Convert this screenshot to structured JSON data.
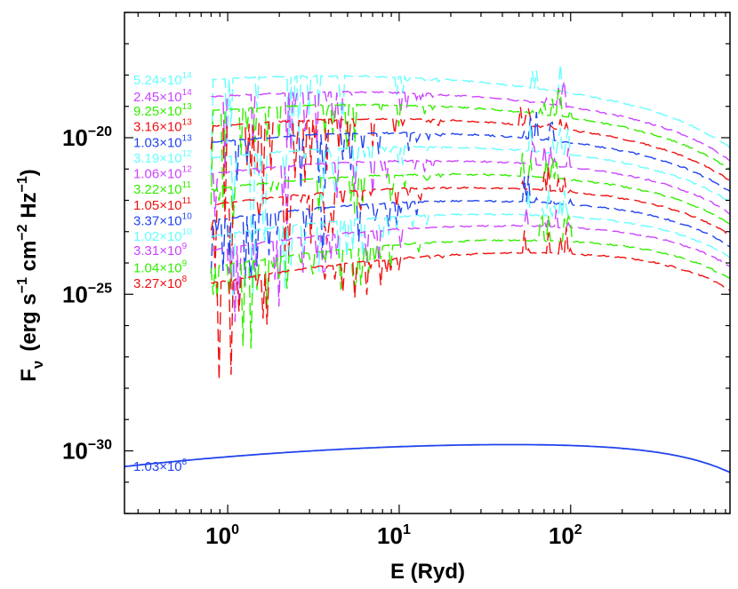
{
  "chart_data": {
    "type": "line",
    "title": "",
    "xlabel": "E (Ryd)",
    "ylabel": "F_ν (erg s^-1 cm^-2 Hz^-1)",
    "ylabel_parts": {
      "main": "F",
      "sub": "ν",
      "units_open": "(erg s",
      "s_exp": "−1",
      "cm": " cm",
      "cm_exp": "−2",
      "hz": " Hz",
      "hz_exp": "−1",
      "units_close": ")"
    },
    "xlabel_text": "E (Ryd)",
    "xscale": "log",
    "yscale": "log",
    "xlim": [
      0.25,
      850
    ],
    "ylim": [
      1e-32,
      1e-16
    ],
    "x_ticks": [
      {
        "value": 1,
        "base": "10",
        "exp": "0"
      },
      {
        "value": 10,
        "base": "10",
        "exp": "1"
      },
      {
        "value": 100,
        "base": "10",
        "exp": "2"
      }
    ],
    "y_ticks": [
      {
        "value": 1e-30,
        "base": "10",
        "exp": "−30"
      },
      {
        "value": 1e-25,
        "base": "10",
        "exp": "−25"
      },
      {
        "value": 1e-20,
        "base": "10",
        "exp": "−20"
      }
    ],
    "series": [
      {
        "name": "5.24×10^14",
        "mant": "5.24×10",
        "exp": "14",
        "color": "#66ffff",
        "style": "dashed",
        "start": 0.8,
        "log_flux_start": -18.15,
        "peak_log_e": 0.6,
        "curvature": -0.25,
        "cutoff_e": 600,
        "noise": 0.05
      },
      {
        "name": "2.45×10^14",
        "mant": "2.45×10",
        "exp": "14",
        "color": "#cc44ff",
        "style": "dashed",
        "start": 0.8,
        "log_flux_start": -18.7,
        "peak_log_e": 0.7,
        "curvature": -0.25,
        "cutoff_e": 600,
        "noise": 0.05
      },
      {
        "name": "9.25×10^13",
        "mant": "9.25×10",
        "exp": "13",
        "color": "#33ee00",
        "style": "dashed",
        "start": 0.8,
        "log_flux_start": -19.15,
        "peak_log_e": 0.8,
        "curvature": -0.25,
        "cutoff_e": 600,
        "noise": 0.05
      },
      {
        "name": "3.16×10^13",
        "mant": "3.16×10",
        "exp": "13",
        "color": "#ee1111",
        "style": "dashed",
        "start": 0.8,
        "log_flux_start": -19.65,
        "peak_log_e": 0.9,
        "curvature": -0.25,
        "cutoff_e": 600,
        "noise": 0.05
      },
      {
        "name": "1.03×10^13",
        "mant": "1.03×10",
        "exp": "13",
        "color": "#2244ee",
        "style": "dashed",
        "start": 0.8,
        "log_flux_start": -20.15,
        "peak_log_e": 1.0,
        "curvature": -0.25,
        "cutoff_e": 600,
        "noise": 0.05
      },
      {
        "name": "3.19×10^12",
        "mant": "3.19×10",
        "exp": "12",
        "color": "#66ffff",
        "style": "dashed",
        "start": 0.8,
        "log_flux_start": -20.65,
        "peak_log_e": 1.1,
        "curvature": -0.25,
        "cutoff_e": 600,
        "noise": 0.05
      },
      {
        "name": "1.06×10^12",
        "mant": "1.06×10",
        "exp": "12",
        "color": "#cc44ff",
        "style": "dashed",
        "start": 0.8,
        "log_flux_start": -21.15,
        "peak_log_e": 1.2,
        "curvature": -0.25,
        "cutoff_e": 600,
        "noise": 0.05
      },
      {
        "name": "3.22×10^11",
        "mant": "3.22×10",
        "exp": "11",
        "color": "#33ee00",
        "style": "dashed",
        "start": 0.8,
        "log_flux_start": -21.65,
        "peak_log_e": 1.3,
        "curvature": -0.25,
        "cutoff_e": 600,
        "noise": 0.05
      },
      {
        "name": "1.05×10^11",
        "mant": "1.05×10",
        "exp": "11",
        "color": "#ee1111",
        "style": "dashed",
        "start": 0.8,
        "log_flux_start": -22.15,
        "peak_log_e": 1.4,
        "curvature": -0.25,
        "cutoff_e": 600,
        "noise": 0.05
      },
      {
        "name": "3.37×10^10",
        "mant": "3.37×10",
        "exp": "10",
        "color": "#2244ee",
        "style": "dashed",
        "start": 0.8,
        "log_flux_start": -22.65,
        "peak_log_e": 1.5,
        "curvature": -0.25,
        "cutoff_e": 600,
        "noise": 0.05
      },
      {
        "name": "1.02×10^10",
        "mant": "1.02×10",
        "exp": "10",
        "color": "#66ffff",
        "style": "dashed",
        "start": 0.8,
        "log_flux_start": -23.15,
        "peak_log_e": 1.6,
        "curvature": -0.25,
        "cutoff_e": 600,
        "noise": 0.05
      },
      {
        "name": "3.31×10^9",
        "mant": "3.31×10",
        "exp": "9",
        "color": "#cc44ff",
        "style": "dashed",
        "start": 0.8,
        "log_flux_start": -23.6,
        "peak_log_e": 1.7,
        "curvature": -0.25,
        "cutoff_e": 600,
        "noise": 0.05
      },
      {
        "name": "1.04×10^9",
        "mant": "1.04×10",
        "exp": "9",
        "color": "#33ee00",
        "style": "dashed",
        "start": 0.8,
        "log_flux_start": -24.15,
        "peak_log_e": 1.8,
        "curvature": -0.25,
        "cutoff_e": 600,
        "noise": 0.05
      },
      {
        "name": "3.27×10^8",
        "mant": "3.27×10",
        "exp": "8",
        "color": "#ee1111",
        "style": "dashed",
        "start": 0.8,
        "log_flux_start": -24.65,
        "peak_log_e": 1.9,
        "curvature": -0.25,
        "cutoff_e": 600,
        "noise": 0.05
      },
      {
        "name": "1.03×10^8",
        "mant": "1.03×10",
        "exp": "8",
        "color": "#2244ee",
        "style": "solid",
        "start": 0.25,
        "log_flux_start": -30.5,
        "peak_log_e": 1.85,
        "curvature": -0.12,
        "cutoff_e": 700,
        "noise": 0
      }
    ],
    "grid": false,
    "legend": "inline-left"
  }
}
